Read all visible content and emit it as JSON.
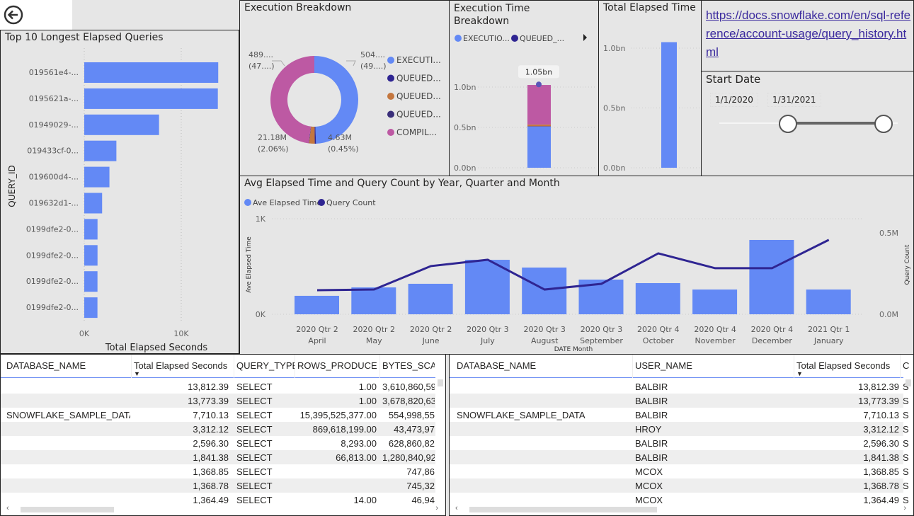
{
  "nav": {
    "back_icon": "arrow-left-circle-icon"
  },
  "top10": {
    "title": "Top 10 Longest Elapsed Queries",
    "chart_data": {
      "type": "bar",
      "orientation": "horizontal",
      "categories": [
        "019561e4-...",
        "0195621a-...",
        "01949029-...",
        "019433cf-0...",
        "019600d4-...",
        "019632d1-...",
        "0199dfe2-0...",
        "0199dfe2-0...",
        "0199dfe2-0...",
        "0199dfe2-0..."
      ],
      "values": [
        13812.39,
        13773.39,
        7710.13,
        3312.12,
        2596.3,
        1841.38,
        1368.85,
        1368.78,
        1364.49,
        1360
      ],
      "xlabel": "Total Elapsed Seconds",
      "ylabel": "QUERY_ID",
      "xticks": [
        "0K",
        "10K"
      ],
      "xlim": [
        0,
        14500
      ],
      "color": "#6389f5"
    }
  },
  "exec_breakdown": {
    "title": "Execution Breakdown",
    "chart_data": {
      "type": "pie",
      "donut": true,
      "slices": [
        {
          "legend": "EXECUTI...",
          "value": 504,
          "color": "#6389f5",
          "label": "504....",
          "pct": "(49....)"
        },
        {
          "legend": "QUEUED...",
          "value": 4.63,
          "color": "#2f2592",
          "label": "4.63M",
          "pct": "(0.45%)"
        },
        {
          "legend": "QUEUED...",
          "value": 21.18,
          "color": "#c4773f",
          "label": "21.18M",
          "pct": "(2.06%)"
        },
        {
          "legend": "QUEUED...",
          "value": 1.5,
          "color": "#3a2f7a",
          "label": "",
          "pct": ""
        },
        {
          "legend": "COMPIL...",
          "value": 489,
          "color": "#bd59a3",
          "label": "489....",
          "pct": "(47....)"
        }
      ]
    }
  },
  "exec_time": {
    "title_line1": "Execution Time",
    "title_line2": "Breakdown",
    "legend": [
      {
        "label": "EXECUTIO...",
        "color": "#6389f5"
      },
      {
        "label": "QUEUED_...",
        "color": "#2f2592"
      }
    ],
    "chart_data": {
      "type": "bar",
      "stacked": true,
      "segments": [
        {
          "value": 0.51,
          "color": "#6389f5"
        },
        {
          "value": 0.005,
          "color": "#2f2592"
        },
        {
          "value": 0.021,
          "color": "#c4773f"
        },
        {
          "value": 0.49,
          "color": "#bd59a3"
        }
      ],
      "total_label": "1.05bn",
      "total": 1.05,
      "yticks": [
        "0.0bn",
        "0.5bn",
        "1.0bn"
      ],
      "ylim": [
        0,
        1.0
      ]
    }
  },
  "total_elapsed": {
    "title": "Total Elapsed Time",
    "chart_data": {
      "type": "bar",
      "values": [
        1.05
      ],
      "yticks": [
        "0.0bn",
        "0.5bn",
        "1.0bn"
      ],
      "color": "#6389f5"
    }
  },
  "link": {
    "text": "https://docs.snowflake.com/en/sql-reference/account-usage/query_history.html"
  },
  "slicer": {
    "title": "Start Date",
    "start": "1/1/2020",
    "end": "1/31/2021",
    "range_fraction": [
      0.36,
      1.0
    ]
  },
  "avg_chart": {
    "title": "Avg Elapsed Time and Query Count by Year, Quarter and Month",
    "chart_data": {
      "type": "bar+line",
      "categories": [
        [
          "2020 Qtr 2",
          "April"
        ],
        [
          "2020 Qtr 2",
          "May"
        ],
        [
          "2020 Qtr 2",
          "June"
        ],
        [
          "2020 Qtr 3",
          "July"
        ],
        [
          "2020 Qtr 3",
          "August"
        ],
        [
          "2020 Qtr 3",
          "September"
        ],
        [
          "2020 Qtr 4",
          "October"
        ],
        [
          "2020 Qtr 4",
          "November"
        ],
        [
          "2020 Qtr 4",
          "December"
        ],
        [
          "2021 Qtr 1",
          "January"
        ]
      ],
      "series": [
        {
          "name": "Ave Elapsed Time",
          "type": "bar",
          "axis": "left",
          "color": "#6389f5",
          "values": [
            193,
            281,
            319,
            570,
            489,
            363,
            326,
            259,
            778,
            259
          ]
        },
        {
          "name": "Query Count",
          "type": "line",
          "axis": "right",
          "color": "#2f2592",
          "values": [
            148000,
            152000,
            296000,
            335000,
            152000,
            187000,
            374000,
            283000,
            283000,
            457000
          ]
        }
      ],
      "xlabel": "DATE Month",
      "ylabel_left": "Ave Elapsed Time",
      "ylabel_right": "Query Count",
      "left_ticks": [
        "0K",
        "1K"
      ],
      "right_ticks": [
        "0.0M",
        "0.5M"
      ],
      "left_ylim": [
        0,
        1000
      ],
      "right_ylim": [
        0,
        587000
      ]
    }
  },
  "table1": {
    "headers": [
      "DATABASE_NAME",
      "Total Elapsed Seconds",
      "QUERY_TYPE",
      "ROWS_PRODUCED",
      "BYTES_SCANNED"
    ],
    "rows": [
      [
        "",
        "13,812.39",
        "SELECT",
        "1.00",
        "3,610,860,59"
      ],
      [
        "",
        "13,773.39",
        "SELECT",
        "1.00",
        "3,678,820,63"
      ],
      [
        "SNOWFLAKE_SAMPLE_DATA",
        "7,710.13",
        "SELECT",
        "15,395,525,377.00",
        "554,998,55"
      ],
      [
        "",
        "3,312.12",
        "SELECT",
        "869,618,199.00",
        "43,473,97"
      ],
      [
        "",
        "2,596.30",
        "SELECT",
        "8,293.00",
        "628,860,82"
      ],
      [
        "",
        "1,841.38",
        "SELECT",
        "66,813.00",
        "1,280,840,92"
      ],
      [
        "",
        "1,368.85",
        "SELECT",
        "",
        "747,86"
      ],
      [
        "",
        "1,368.78",
        "SELECT",
        "",
        "745,32"
      ],
      [
        "",
        "1,364.49",
        "SELECT",
        "14.00",
        "46,94"
      ]
    ]
  },
  "table2": {
    "headers": [
      "DATABASE_NAME",
      "USER_NAME",
      "Total Elapsed Seconds",
      "C"
    ],
    "rows": [
      [
        "",
        "BALBIR",
        "13,812.39",
        "S"
      ],
      [
        "",
        "BALBIR",
        "13,773.39",
        "S"
      ],
      [
        "SNOWFLAKE_SAMPLE_DATA",
        "BALBIR",
        "7,710.13",
        "S"
      ],
      [
        "",
        "HROY",
        "3,312.12",
        "S"
      ],
      [
        "",
        "BALBIR",
        "2,596.30",
        "S"
      ],
      [
        "",
        "BALBIR",
        "1,841.38",
        "S"
      ],
      [
        "",
        "MCOX",
        "1,368.85",
        "S"
      ],
      [
        "",
        "MCOX",
        "1,368.78",
        "S"
      ],
      [
        "",
        "MCOX",
        "1,364.49",
        "S"
      ]
    ]
  }
}
